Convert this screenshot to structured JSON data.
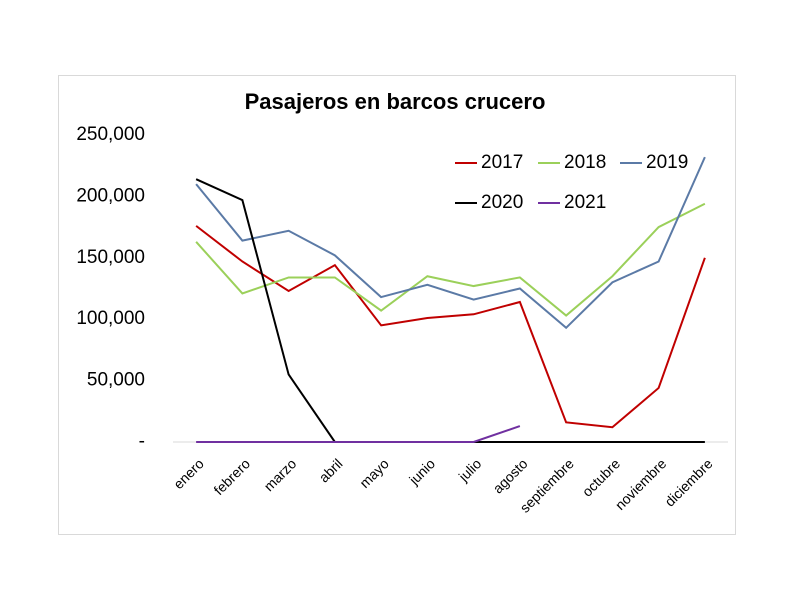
{
  "chart_data": {
    "type": "line",
    "title": "Pasajeros en barcos crucero",
    "categories": [
      "enero",
      "febrero",
      "marzo",
      "abril",
      "mayo",
      "junio",
      "julio",
      "agosto",
      "septiembre",
      "octubre",
      "noviembre",
      "diciembre"
    ],
    "series": [
      {
        "name": "2017",
        "color": "#c00000",
        "values": [
          176000,
          147000,
          123000,
          144000,
          95000,
          101000,
          104000,
          114000,
          16000,
          12000,
          44000,
          150000
        ]
      },
      {
        "name": "2018",
        "color": "#9bd05a",
        "values": [
          163000,
          121000,
          134000,
          134000,
          107000,
          135000,
          127000,
          134000,
          103000,
          135000,
          175000,
          194000
        ]
      },
      {
        "name": "2019",
        "color": "#5b7aa6",
        "values": [
          210000,
          164000,
          172000,
          152000,
          118000,
          128000,
          116000,
          125000,
          93000,
          130000,
          147000,
          232000
        ]
      },
      {
        "name": "2020",
        "color": "#000000",
        "values": [
          214000,
          197000,
          55000,
          0,
          0,
          0,
          0,
          0,
          0,
          0,
          0,
          0
        ]
      },
      {
        "name": "2021",
        "color": "#7030a0",
        "values": [
          0,
          0,
          0,
          0,
          0,
          0,
          0,
          13000,
          null,
          null,
          null,
          null
        ]
      }
    ],
    "ylim": [
      0,
      250000
    ],
    "yticks": [
      {
        "value": 0,
        "label": "-"
      },
      {
        "value": 50000,
        "label": "50,000"
      },
      {
        "value": 100000,
        "label": "100,000"
      },
      {
        "value": 150000,
        "label": "150,000"
      },
      {
        "value": 200000,
        "label": "200,000"
      },
      {
        "value": 250000,
        "label": "250,000"
      }
    ],
    "grid": false,
    "legend": "upper right"
  }
}
